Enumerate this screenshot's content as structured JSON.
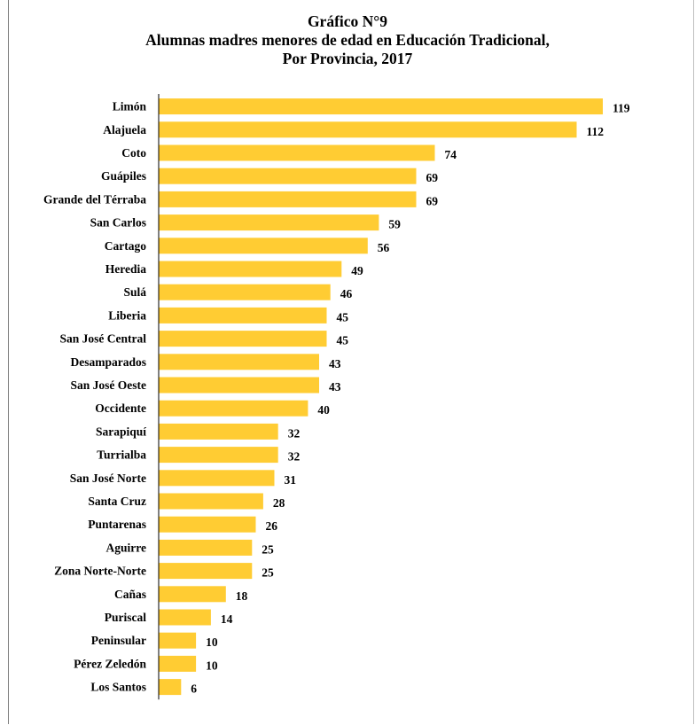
{
  "title_lines": [
    "Gráfico N°9",
    "Alumnas madres menores de edad en Educación Tradicional,",
    "Por Provincia, 2017"
  ],
  "colors": {
    "bar": "#FFCC33",
    "axis": "#000000",
    "text": "#000000"
  },
  "chart_data": {
    "type": "bar",
    "orientation": "horizontal",
    "title": "Gráfico N°9 Alumnas madres menores de edad en Educación Tradicional, Por Provincia, 2017",
    "xlabel": "",
    "ylabel": "",
    "xlim": [
      0,
      119
    ],
    "grid": false,
    "legend": "none",
    "data_labels": true,
    "categories": [
      "Limón",
      "Alajuela",
      "Coto",
      "Guápiles",
      "Grande del Térraba",
      "San Carlos",
      "Cartago",
      "Heredia",
      "Sulá",
      "Liberia",
      "San José Central",
      "Desamparados",
      "San José Oeste",
      "Occidente",
      "Sarapiquí",
      "Turrialba",
      "San José Norte",
      "Santa Cruz",
      "Puntarenas",
      "Aguirre",
      "Zona Norte-Norte",
      "Cañas",
      "Puriscal",
      "Peninsular",
      "Pérez Zeledón",
      "Los Santos"
    ],
    "values": [
      119,
      112,
      74,
      69,
      69,
      59,
      56,
      49,
      46,
      45,
      45,
      43,
      43,
      40,
      32,
      32,
      31,
      28,
      26,
      25,
      25,
      18,
      14,
      10,
      10,
      6
    ]
  }
}
